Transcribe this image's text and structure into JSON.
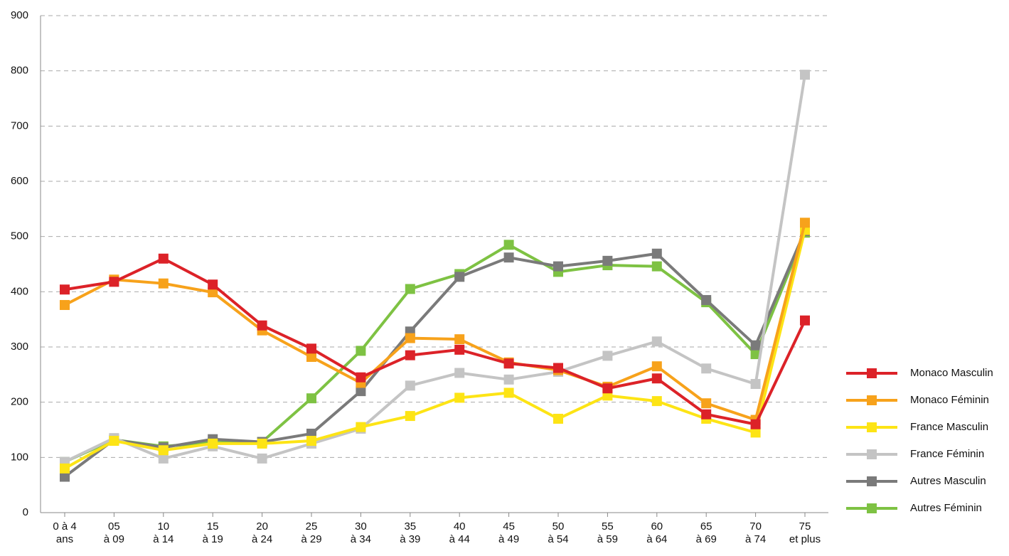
{
  "chart_data": {
    "type": "line",
    "categories": [
      [
        "0 à 4",
        "ans"
      ],
      [
        "05",
        "à 09"
      ],
      [
        "10",
        "à 14"
      ],
      [
        "15",
        "à 19"
      ],
      [
        "20",
        "à 24"
      ],
      [
        "25",
        "à 29"
      ],
      [
        "30",
        "à 34"
      ],
      [
        "35",
        "à 39"
      ],
      [
        "40",
        "à 44"
      ],
      [
        "45",
        "à 49"
      ],
      [
        "50",
        "à 54"
      ],
      [
        "55",
        "à 59"
      ],
      [
        "60",
        "à 64"
      ],
      [
        "65",
        "à 69"
      ],
      [
        "70",
        "à 74"
      ],
      [
        "75",
        "et plus"
      ]
    ],
    "series": [
      {
        "name": "Monaco Masculin",
        "color": "#dc2228",
        "values": [
          404,
          418,
          460,
          413,
          339,
          297,
          245,
          285,
          295,
          270,
          262,
          225,
          243,
          178,
          160,
          348
        ]
      },
      {
        "name": "Monaco Féminin",
        "color": "#f7a21b",
        "values": [
          376,
          422,
          415,
          399,
          330,
          282,
          235,
          316,
          314,
          272,
          258,
          228,
          265,
          198,
          168,
          525
        ]
      },
      {
        "name": "France Masculin",
        "color": "#fde415",
        "values": [
          80,
          130,
          113,
          125,
          125,
          130,
          155,
          175,
          208,
          217,
          170,
          212,
          202,
          170,
          145,
          512
        ]
      },
      {
        "name": "France Féminin",
        "color": "#c4c4c4",
        "values": [
          92,
          135,
          98,
          120,
          98,
          125,
          152,
          230,
          253,
          241,
          255,
          284,
          310,
          261,
          233,
          793
        ]
      },
      {
        "name": "Autres Masculin",
        "color": "#7a7a7a",
        "values": [
          65,
          132,
          118,
          133,
          128,
          143,
          220,
          328,
          427,
          462,
          446,
          456,
          469,
          385,
          303,
          510
        ]
      },
      {
        "name": "Autres Féminin",
        "color": "#7ec243",
        "values": [
          92,
          132,
          120,
          127,
          128,
          207,
          293,
          405,
          432,
          485,
          436,
          448,
          446,
          381,
          287,
          507
        ]
      }
    ],
    "ylim": [
      0,
      900
    ],
    "yticks": [
      0,
      100,
      200,
      300,
      400,
      500,
      600,
      700,
      800,
      900
    ],
    "grid": true,
    "legend": "right"
  }
}
